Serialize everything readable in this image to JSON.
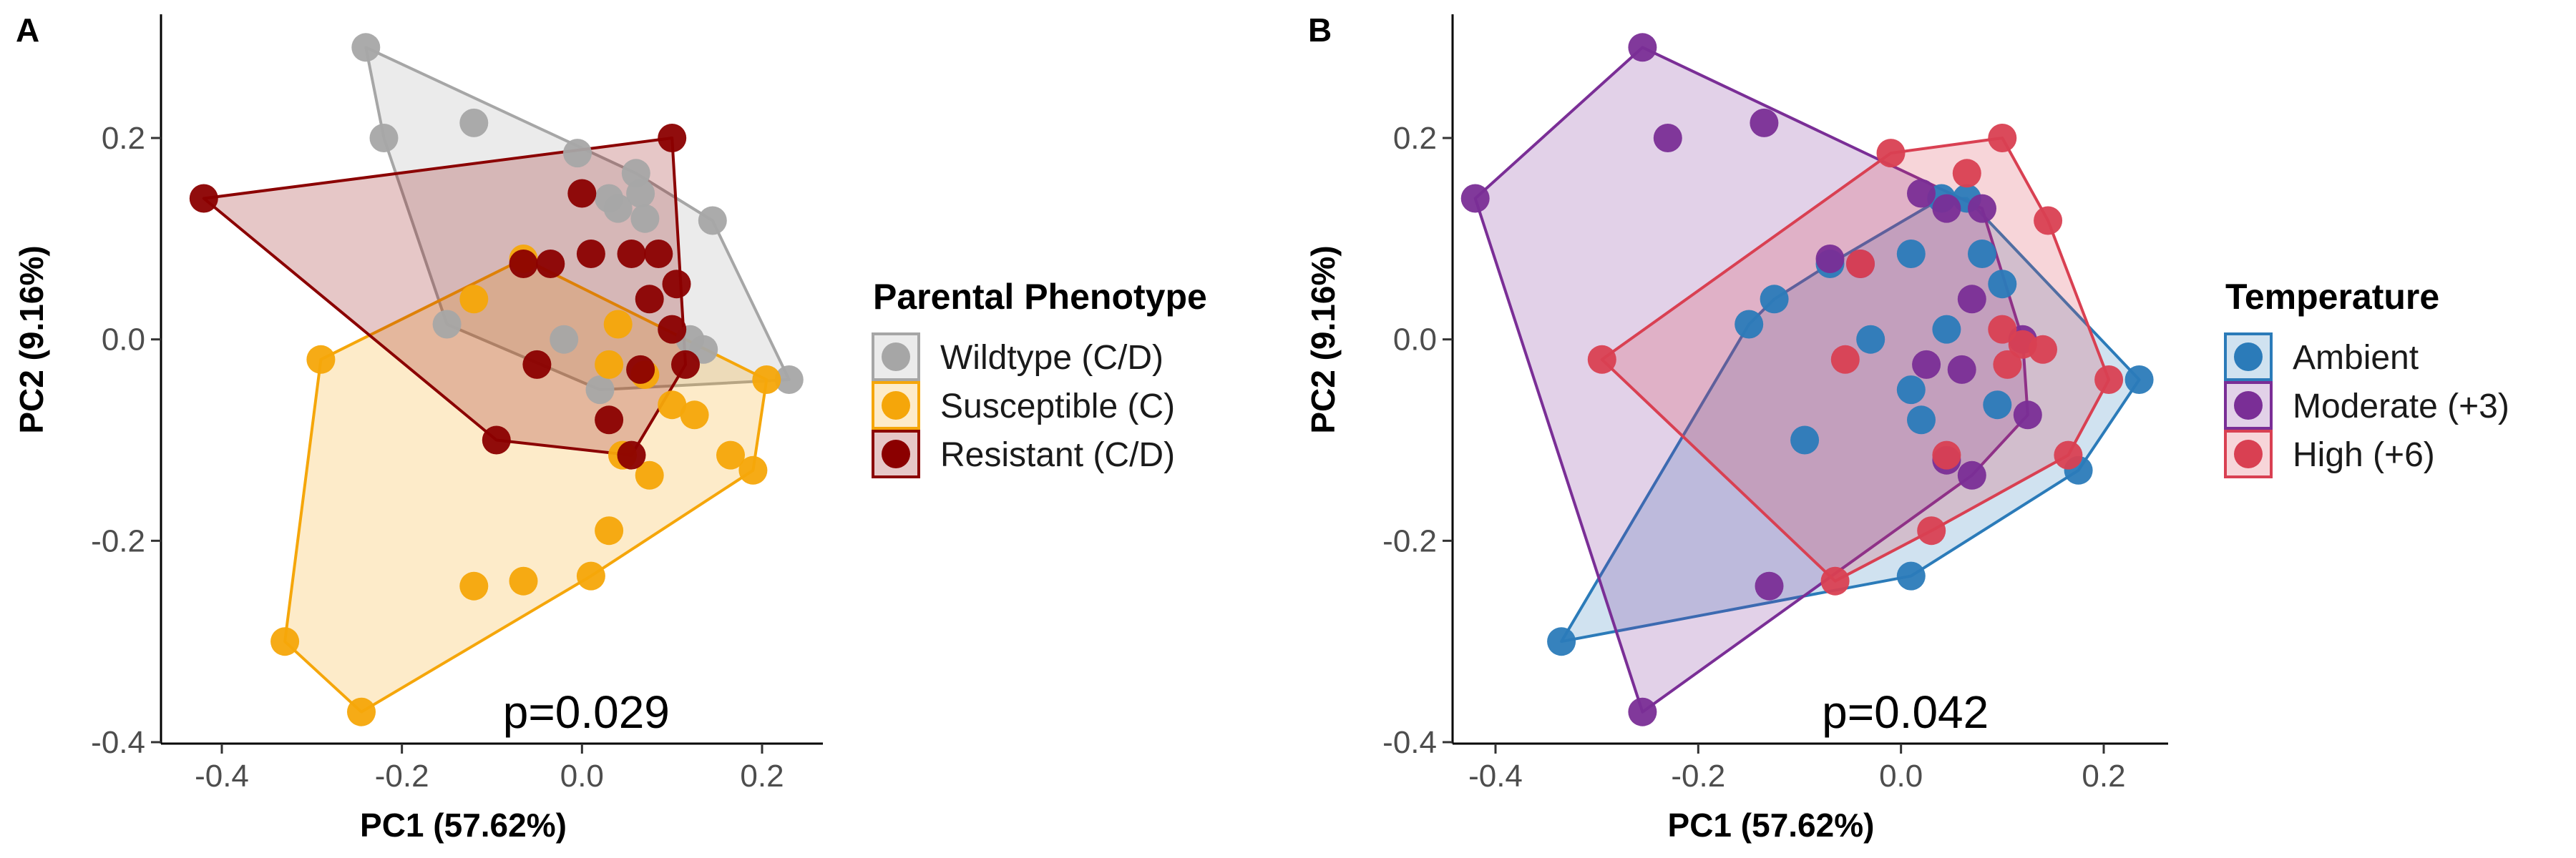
{
  "chart_data": [
    {
      "type": "scatter",
      "panel_label": "A",
      "xlabel": "PC1 (57.62%)",
      "ylabel": "PC2 (9.16%)",
      "xlim": [
        -0.44,
        0.26
      ],
      "ylim": [
        -0.4,
        0.32
      ],
      "xticks": [
        -0.4,
        -0.2,
        0.0,
        0.2
      ],
      "xtick_labels": [
        "-0.4",
        "-0.2",
        "0.0",
        "0.2"
      ],
      "yticks": [
        -0.4,
        -0.2,
        0.0,
        0.2
      ],
      "ytick_labels": [
        "-0.4",
        "-0.2",
        "0.0",
        "0.2"
      ],
      "grid": false,
      "hulls": true,
      "annotation": "p=0.029",
      "legend": {
        "title": "Parental Phenotype",
        "position": "right"
      },
      "series": [
        {
          "name": "Wildtype (C/D)",
          "color": "#a6a6a6",
          "points": [
            [
              -0.24,
              0.29
            ],
            [
              -0.22,
              0.2
            ],
            [
              -0.12,
              0.215
            ],
            [
              -0.005,
              0.185
            ],
            [
              0.06,
              0.165
            ],
            [
              0.065,
              0.145
            ],
            [
              0.03,
              0.14
            ],
            [
              0.04,
              0.13
            ],
            [
              0.07,
              0.12
            ],
            [
              0.145,
              0.118
            ],
            [
              0.12,
              0.0
            ],
            [
              0.135,
              -0.01
            ],
            [
              0.23,
              -0.04
            ],
            [
              -0.15,
              0.015
            ],
            [
              -0.02,
              0.0
            ],
            [
              0.02,
              -0.05
            ]
          ]
        },
        {
          "name": "Susceptible (C)",
          "color": "#f5a60a",
          "points": [
            [
              -0.065,
              0.08
            ],
            [
              -0.12,
              0.04
            ],
            [
              -0.29,
              -0.02
            ],
            [
              0.04,
              0.015
            ],
            [
              0.03,
              -0.025
            ],
            [
              0.07,
              -0.035
            ],
            [
              0.1,
              -0.065
            ],
            [
              0.125,
              -0.075
            ],
            [
              0.045,
              -0.115
            ],
            [
              0.165,
              -0.115
            ],
            [
              0.19,
              -0.13
            ],
            [
              0.075,
              -0.135
            ],
            [
              0.03,
              -0.19
            ],
            [
              0.01,
              -0.235
            ],
            [
              -0.065,
              -0.24
            ],
            [
              -0.12,
              -0.245
            ],
            [
              -0.33,
              -0.3
            ],
            [
              -0.245,
              -0.37
            ],
            [
              0.205,
              -0.04
            ]
          ]
        },
        {
          "name": "Resistant (C/D)",
          "color": "#8b0000",
          "points": [
            [
              -0.42,
              0.14
            ],
            [
              0.1,
              0.2
            ],
            [
              0.0,
              0.145
            ],
            [
              -0.065,
              0.075
            ],
            [
              -0.035,
              0.075
            ],
            [
              0.01,
              0.085
            ],
            [
              0.055,
              0.085
            ],
            [
              0.085,
              0.085
            ],
            [
              0.105,
              0.055
            ],
            [
              0.075,
              0.04
            ],
            [
              0.1,
              0.01
            ],
            [
              0.115,
              -0.025
            ],
            [
              -0.05,
              -0.025
            ],
            [
              0.065,
              -0.03
            ],
            [
              0.03,
              -0.08
            ],
            [
              -0.095,
              -0.1
            ],
            [
              0.055,
              -0.115
            ]
          ]
        }
      ]
    },
    {
      "type": "scatter",
      "panel_label": "B",
      "xlabel": "PC1 (57.62%)",
      "ylabel": "PC2 (9.16%)",
      "xlim": [
        -0.44,
        0.26
      ],
      "ylim": [
        -0.4,
        0.32
      ],
      "xticks": [
        -0.4,
        -0.2,
        0.0,
        0.2
      ],
      "xtick_labels": [
        "-0.4",
        "-0.2",
        "0.0",
        "0.2"
      ],
      "yticks": [
        -0.4,
        -0.2,
        0.0,
        0.2
      ],
      "ytick_labels": [
        "-0.4",
        "-0.2",
        "0.0",
        "0.2"
      ],
      "grid": false,
      "hulls": true,
      "annotation": "p=0.042",
      "legend": {
        "title": "Temperature",
        "position": "right"
      },
      "series": [
        {
          "name": "Ambient",
          "color": "#2b7bb9",
          "points": [
            [
              0.04,
              0.14
            ],
            [
              0.065,
              0.14
            ],
            [
              0.01,
              0.085
            ],
            [
              0.08,
              0.085
            ],
            [
              -0.125,
              0.04
            ],
            [
              -0.15,
              0.015
            ],
            [
              -0.03,
              0.0
            ],
            [
              0.045,
              0.01
            ],
            [
              0.1,
              0.055
            ],
            [
              -0.07,
              0.075
            ],
            [
              0.235,
              -0.04
            ],
            [
              0.095,
              -0.065
            ],
            [
              0.01,
              -0.05
            ],
            [
              0.02,
              -0.08
            ],
            [
              -0.095,
              -0.1
            ],
            [
              0.175,
              -0.13
            ],
            [
              0.01,
              -0.235
            ],
            [
              -0.335,
              -0.3
            ]
          ]
        },
        {
          "name": "Moderate (+3)",
          "color": "#7a2e96",
          "points": [
            [
              -0.255,
              0.29
            ],
            [
              -0.23,
              0.2
            ],
            [
              -0.135,
              0.215
            ],
            [
              -0.42,
              0.14
            ],
            [
              0.02,
              0.145
            ],
            [
              0.045,
              0.13
            ],
            [
              0.08,
              0.13
            ],
            [
              -0.07,
              0.08
            ],
            [
              -0.04,
              0.075
            ],
            [
              0.07,
              0.04
            ],
            [
              0.12,
              -0.0
            ],
            [
              0.025,
              -0.025
            ],
            [
              0.06,
              -0.03
            ],
            [
              0.125,
              -0.075
            ],
            [
              0.045,
              -0.12
            ],
            [
              0.07,
              -0.135
            ],
            [
              -0.13,
              -0.245
            ],
            [
              -0.255,
              -0.37
            ]
          ]
        },
        {
          "name": "High (+6)",
          "color": "#d94052",
          "points": [
            [
              0.1,
              0.2
            ],
            [
              -0.01,
              0.185
            ],
            [
              0.065,
              0.165
            ],
            [
              0.145,
              0.118
            ],
            [
              -0.04,
              0.075
            ],
            [
              0.1,
              0.01
            ],
            [
              0.12,
              -0.005
            ],
            [
              0.14,
              -0.01
            ],
            [
              0.105,
              -0.025
            ],
            [
              -0.295,
              -0.02
            ],
            [
              -0.055,
              -0.02
            ],
            [
              0.205,
              -0.04
            ],
            [
              0.045,
              -0.115
            ],
            [
              0.165,
              -0.115
            ],
            [
              0.03,
              -0.19
            ],
            [
              -0.065,
              -0.24
            ]
          ]
        }
      ]
    }
  ]
}
